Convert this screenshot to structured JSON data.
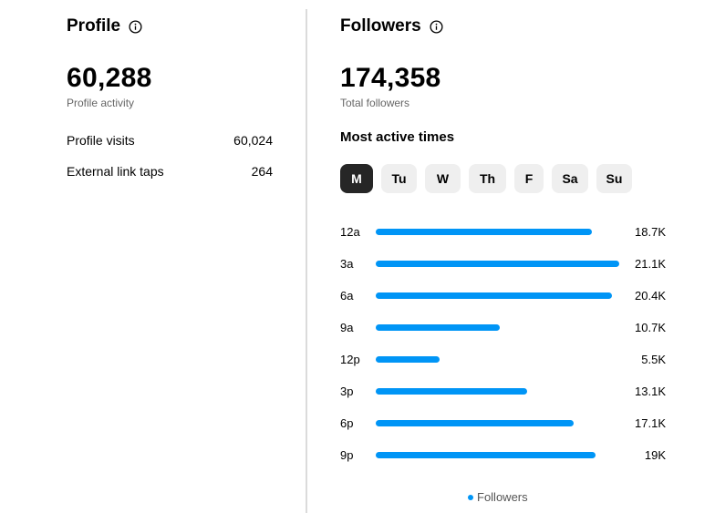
{
  "profile": {
    "title": "Profile",
    "total": "60,288",
    "caption": "Profile activity",
    "stats": [
      {
        "label": "Profile visits",
        "value": "60,024"
      },
      {
        "label": "External link taps",
        "value": "264"
      }
    ]
  },
  "followers": {
    "title": "Followers",
    "total": "174,358",
    "caption": "Total followers",
    "active_title": "Most active times",
    "days": [
      "M",
      "Tu",
      "W",
      "Th",
      "F",
      "Sa",
      "Su"
    ],
    "selected_day": "M",
    "legend": "Followers"
  },
  "colors": {
    "accent": "#0095f6",
    "active_tab": "#262626",
    "tab_bg": "#efefef"
  },
  "icons": {
    "info": "info-icon"
  },
  "chart_data": {
    "type": "bar",
    "orientation": "horizontal",
    "categories": [
      "12a",
      "3a",
      "6a",
      "9a",
      "12p",
      "3p",
      "6p",
      "9p"
    ],
    "values": [
      18.7,
      21.1,
      20.4,
      10.7,
      5.5,
      13.1,
      17.1,
      19
    ],
    "value_labels": [
      "18.7K",
      "21.1K",
      "20.4K",
      "10.7K",
      "5.5K",
      "13.1K",
      "17.1K",
      "19K"
    ],
    "unit": "K",
    "series": [
      {
        "name": "Followers",
        "values": [
          18.7,
          21.1,
          20.4,
          10.7,
          5.5,
          13.1,
          17.1,
          19
        ]
      }
    ],
    "legend": "bottom-center"
  }
}
